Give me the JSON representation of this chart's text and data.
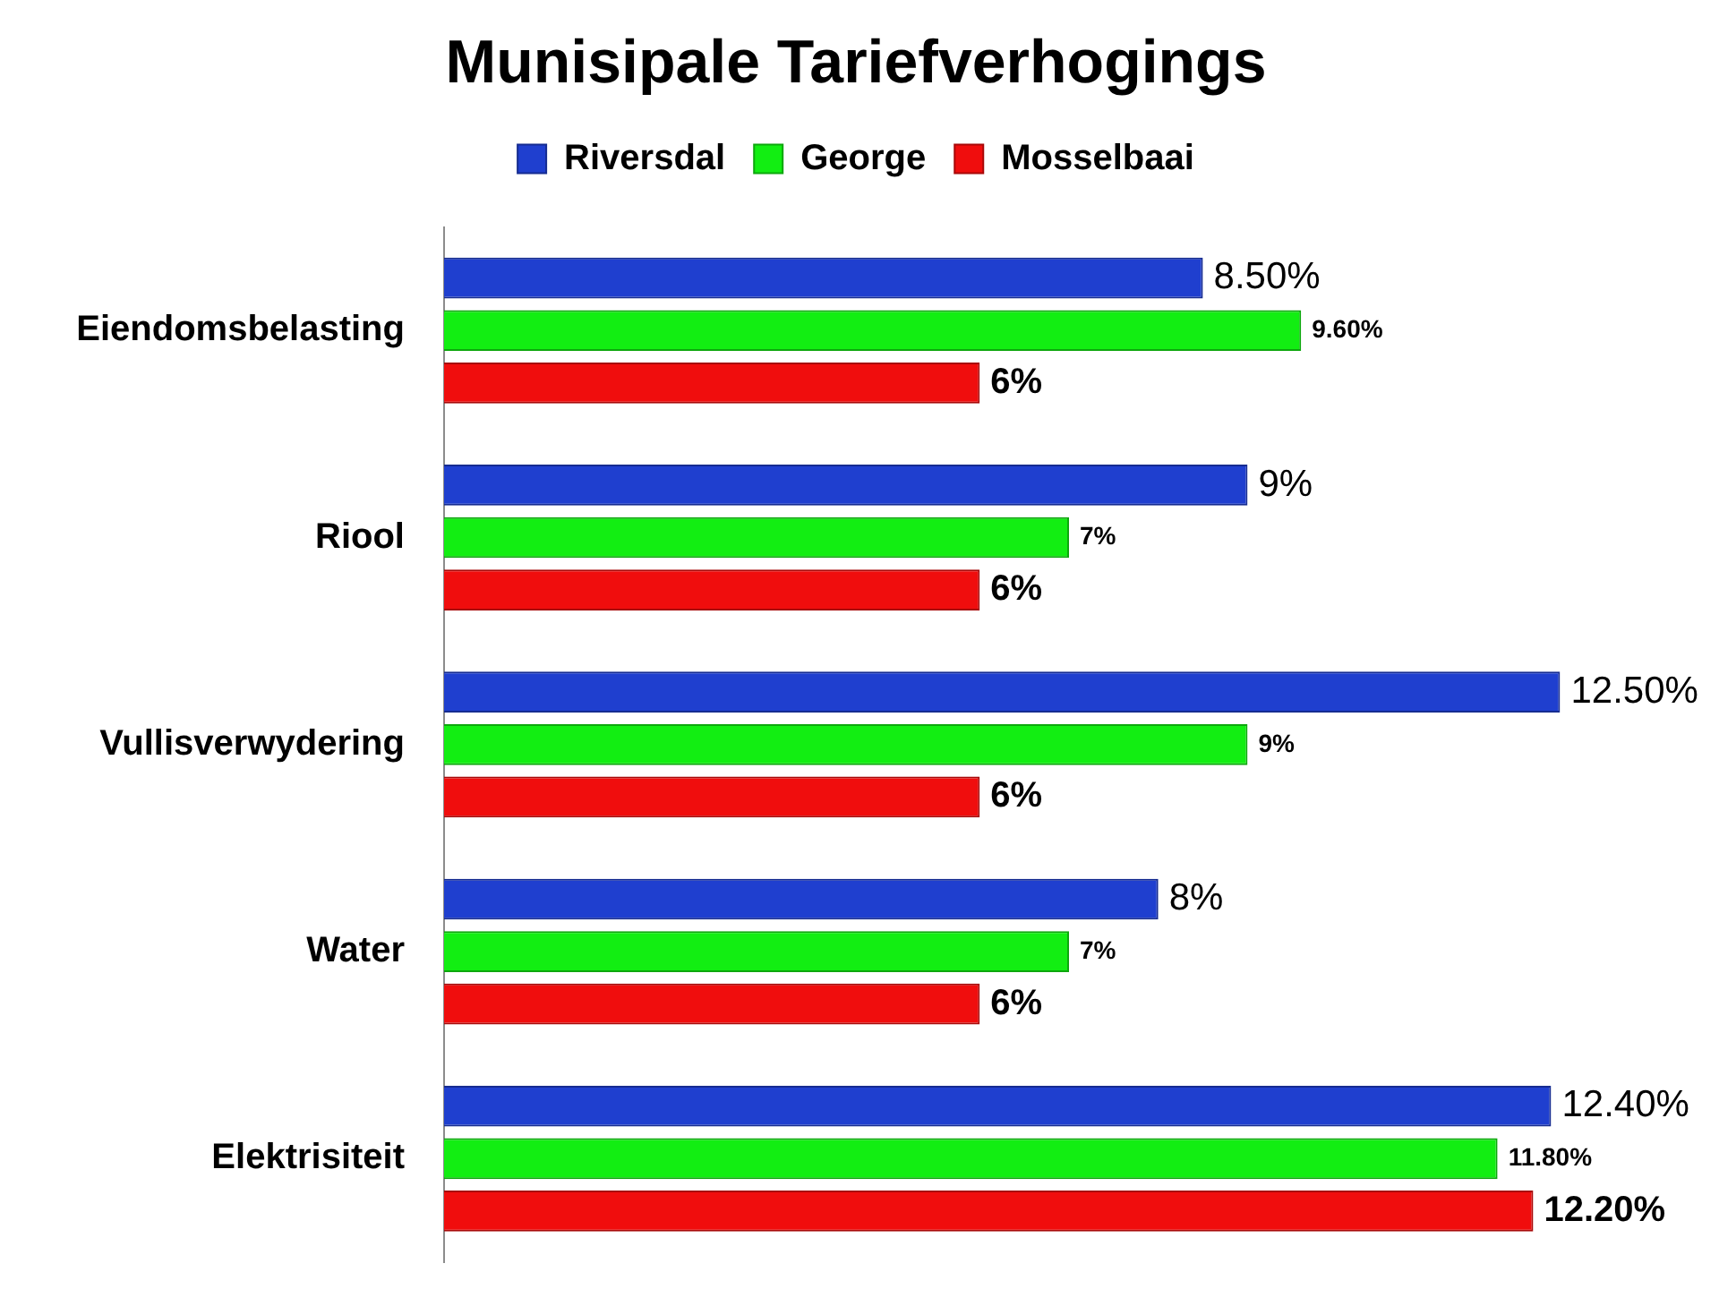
{
  "chart_data": {
    "type": "bar",
    "orientation": "horizontal",
    "title": "Munisipale Tariefverhogings",
    "categories": [
      "Eiendomsbelasting",
      "Riool",
      "Vullisverwydering",
      "Water",
      "Elektrisiteit"
    ],
    "series": [
      {
        "name": "Riversdal",
        "color": "#1f3fcf",
        "values": [
          8.5,
          9,
          12.5,
          8,
          12.4
        ],
        "value_labels": [
          "8.50%",
          "9%",
          "12.50%",
          "8%",
          "12.40%"
        ]
      },
      {
        "name": "George",
        "color": "#12ee12",
        "values": [
          9.6,
          7,
          9,
          7,
          11.8
        ],
        "value_labels": [
          "9.60%",
          "7%",
          "9%",
          "7%",
          "11.80%"
        ]
      },
      {
        "name": "Mosselbaai",
        "color": "#f00d0d",
        "values": [
          6,
          6,
          6,
          6,
          12.2
        ],
        "value_labels": [
          "6%",
          "6%",
          "6%",
          "6%",
          "12.20%"
        ]
      }
    ],
    "legend": "top",
    "grid": false,
    "tick_labels": "y"
  }
}
